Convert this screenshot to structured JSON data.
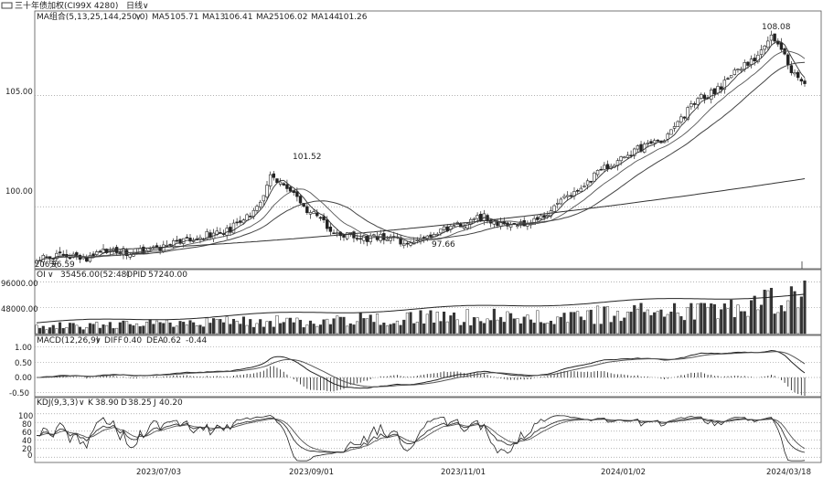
{
  "title_bar": {
    "instrument": "三十年债加权(CI99X 4280)",
    "period": "日线",
    "chevron": "∨"
  },
  "ma_legend": {
    "label": "MA组合(5,13,25,144,250,0)",
    "items": [
      {
        "name": "MA5",
        "value": "105.71"
      },
      {
        "name": "MA13",
        "value": "106.41"
      },
      {
        "name": "MA25",
        "value": "106.02"
      },
      {
        "name": "MA144",
        "value": "101.26"
      }
    ]
  },
  "oi_legend": {
    "label": "OI",
    "vol_value": "35456.00(52:48)",
    "opid_label": "OPID",
    "opid_value": "57240.00"
  },
  "macd_legend": {
    "label": "MACD(12,26,9)",
    "diff_label": "DIFF",
    "diff_value": "0.40",
    "dea_label": "DEA",
    "dea_value": "0.62",
    "macd_value": "-0.44"
  },
  "kdj_legend": {
    "label": "KDJ(9,3,3)",
    "k_label": "K",
    "k_value": "38.90",
    "d_label": "D",
    "d_value": "38.25",
    "j_label": "J",
    "j_value": "40.20"
  },
  "chart_data": [
    {
      "type": "candlestick",
      "panel": "price",
      "ylim": [
        97.3,
        108.3
      ],
      "yticks": [
        "105.00",
        "100.00"
      ],
      "annotations": [
        {
          "label": "108.08",
          "kind": "high"
        },
        {
          "label": "101.52",
          "kind": "high"
        },
        {
          "label": "97.66",
          "kind": "low"
        },
        {
          "label": "96.59",
          "kind": "low"
        }
      ],
      "corner_label": "206天",
      "close_keypoints": [
        [
          0,
          97.6
        ],
        [
          8,
          97.8
        ],
        [
          15,
          97.7
        ],
        [
          22,
          98.1
        ],
        [
          28,
          97.9
        ],
        [
          38,
          98.2
        ],
        [
          48,
          98.6
        ],
        [
          58,
          99.0
        ],
        [
          65,
          99.7
        ],
        [
          70,
          101.3
        ],
        [
          74,
          101.0
        ],
        [
          80,
          100.0
        ],
        [
          88,
          99.0
        ],
        [
          96,
          98.6
        ],
        [
          104,
          98.6
        ],
        [
          112,
          98.4
        ],
        [
          120,
          98.9
        ],
        [
          128,
          99.2
        ],
        [
          134,
          99.6
        ],
        [
          140,
          99.1
        ],
        [
          146,
          99.2
        ],
        [
          152,
          99.6
        ],
        [
          158,
          100.4
        ],
        [
          164,
          101.0
        ],
        [
          170,
          101.7
        ],
        [
          176,
          102.3
        ],
        [
          182,
          102.7
        ],
        [
          188,
          103.1
        ],
        [
          192,
          103.8
        ],
        [
          198,
          104.8
        ],
        [
          204,
          105.3
        ],
        [
          210,
          106.1
        ],
        [
          216,
          106.8
        ],
        [
          220,
          107.6
        ],
        [
          224,
          107.0
        ],
        [
          226,
          106.0
        ],
        [
          230,
          105.7
        ]
      ],
      "x_ticks": [
        "2023/07/03",
        "2023/09/01",
        "2023/11/01",
        "2024/01/02",
        "2024/03/18"
      ]
    },
    {
      "type": "bar",
      "panel": "open_interest",
      "ylim": [
        0,
        100000
      ],
      "yticks": [
        "96000.00",
        "48000.00"
      ],
      "series": [
        {
          "name": "OI"
        },
        {
          "name": "OPID"
        }
      ]
    },
    {
      "type": "bar",
      "panel": "macd",
      "ylim": [
        -0.6,
        1.05
      ],
      "yticks": [
        "1.00",
        "0.50",
        "0.00",
        "-0.50"
      ],
      "series": [
        {
          "name": "DIFF"
        },
        {
          "name": "DEA"
        },
        {
          "name": "MACD"
        }
      ]
    },
    {
      "type": "line",
      "panel": "kdj",
      "ylim": [
        -10,
        110
      ],
      "yticks": [
        "100",
        "80",
        "60",
        "40",
        "20",
        "0"
      ],
      "series": [
        {
          "name": "K"
        },
        {
          "name": "D"
        },
        {
          "name": "J"
        }
      ]
    }
  ]
}
